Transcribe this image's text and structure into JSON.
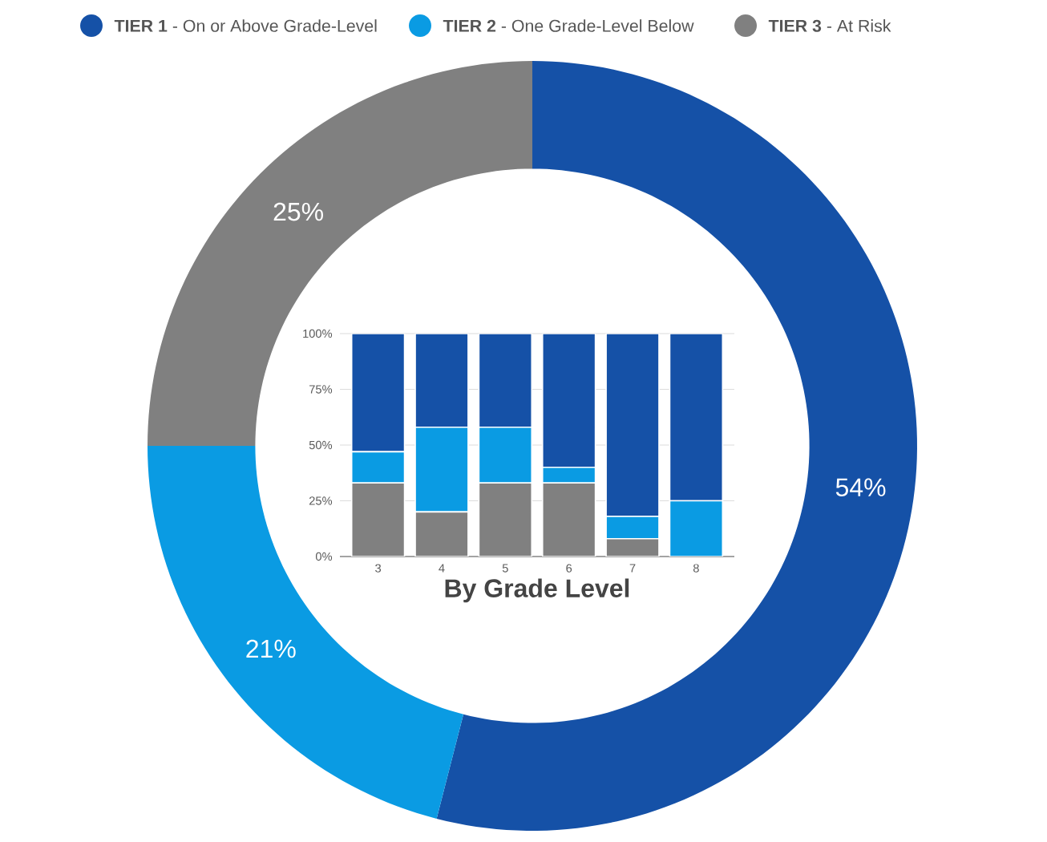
{
  "chart_data": [
    {
      "type": "donut",
      "categories": [
        "**TIER 1** - On or Above Grade-Level",
        "**TIER 2** - One Grade-Level Below",
        "**TIER 3** - At Risk"
      ],
      "values": [
        54,
        21,
        25
      ],
      "colors": [
        "#1551a7",
        "#0a9be3",
        "#808080"
      ],
      "value_labels": [
        "54%",
        "21%",
        "25%"
      ],
      "legend": "top"
    },
    {
      "type": "bar",
      "stacked": true,
      "categories": [
        "3",
        "4",
        "5",
        "6",
        "7",
        "8"
      ],
      "xlabel": "By Grade Level",
      "series": [
        {
          "color": "#808080",
          "values": [
            33,
            20,
            33,
            33,
            8,
            0
          ]
        },
        {
          "color": "#0a9be3",
          "values": [
            14,
            38,
            25,
            7,
            10,
            25
          ]
        },
        {
          "color": "#1551a7",
          "values": [
            53,
            42,
            42,
            60,
            82,
            75
          ]
        }
      ],
      "ylim": [
        0,
        100
      ],
      "yticks": [
        {
          "value": 0,
          "label": "0%"
        },
        {
          "value": 25,
          "label": "25%"
        },
        {
          "value": 50,
          "label": "50%"
        },
        {
          "value": 75,
          "label": "75%"
        },
        {
          "value": 100,
          "label": "100%"
        }
      ],
      "grid": "y"
    }
  ]
}
